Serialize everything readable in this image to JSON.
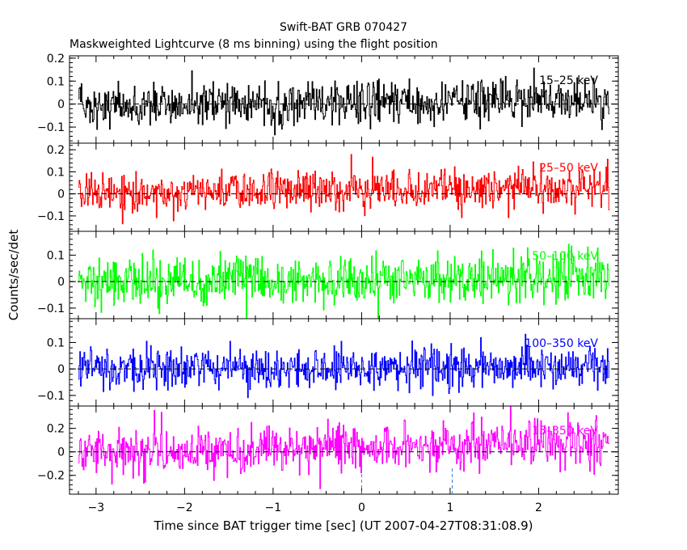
{
  "chart_data": {
    "type": "line",
    "title": "Swift-BAT GRB 070427",
    "subtitle": "Maskweighted Lightcurve (8 ms binning) using the flight position",
    "xlabel": "Time since BAT trigger time [sec] (UT 2007-04-27T08:31:08.9)",
    "ylabel": "Counts/sec/det",
    "xlim": [
      -3.3,
      2.9
    ],
    "x_ticks": [
      -3,
      -2,
      -1,
      0,
      1,
      2
    ],
    "x_tick_labels": [
      "−3",
      "−2",
      "−1",
      "0",
      "1",
      "2"
    ],
    "data_range": [
      -3.2,
      2.8
    ],
    "bin_size_sec": 0.008,
    "trigger_markers": [
      0,
      1.024
    ],
    "panels": [
      {
        "name": "15-25 keV",
        "label": "15–25 keV",
        "color": "#000000",
        "ylim": [
          -0.17,
          0.21
        ],
        "y_ticks": [
          -0.1,
          0,
          0.1,
          0.2
        ],
        "y_tick_labels": [
          "−0.1",
          "0",
          "0.1",
          "0.2"
        ],
        "noise_std": 0.045,
        "level_start": 0.0,
        "level_end": 0.015
      },
      {
        "name": "25-50 keV",
        "label": "25–50 keV",
        "color": "#ff0000",
        "ylim": [
          -0.17,
          0.23
        ],
        "y_ticks": [
          -0.1,
          0,
          0.1,
          0.2
        ],
        "y_tick_labels": [
          "−0.1",
          "0",
          "0.1",
          "0.2"
        ],
        "noise_std": 0.045,
        "level_start": 0.0,
        "level_end": 0.035
      },
      {
        "name": "50-100 keV",
        "label": "50–100 keV",
        "color": "#00ff00",
        "ylim": [
          -0.14,
          0.19
        ],
        "y_ticks": [
          -0.1,
          0,
          0.1
        ],
        "y_tick_labels": [
          "−0.1",
          "0",
          "0.1"
        ],
        "noise_std": 0.045,
        "level_start": 0.0,
        "level_end": 0.02
      },
      {
        "name": "100-350 keV",
        "label": "100–350 keV",
        "color": "#0000ff",
        "ylim": [
          -0.14,
          0.19
        ],
        "y_ticks": [
          -0.1,
          0,
          0.1
        ],
        "y_tick_labels": [
          "−0.1",
          "0",
          "0.1"
        ],
        "noise_std": 0.04,
        "level_start": 0.0,
        "level_end": 0.005
      },
      {
        "name": "15-350 keV",
        "label": "15–350 keV",
        "color": "#ff00ff",
        "ylim": [
          -0.36,
          0.39
        ],
        "y_ticks": [
          -0.2,
          0,
          0.2
        ],
        "y_tick_labels": [
          "−0.2",
          "0",
          "0.2"
        ],
        "noise_std": 0.095,
        "level_start": 0.0,
        "level_end": 0.08
      }
    ]
  }
}
